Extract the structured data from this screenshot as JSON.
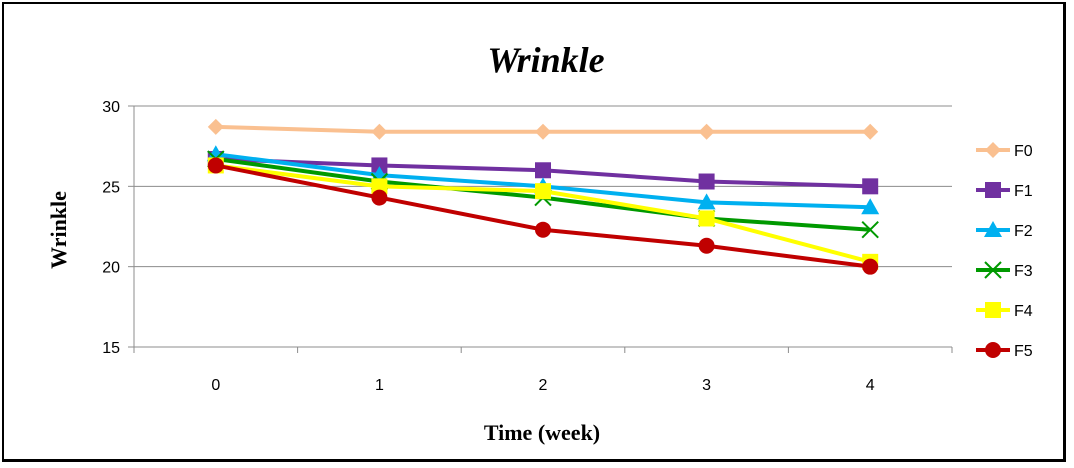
{
  "chart_data": {
    "type": "line",
    "title": "Wrinkle",
    "xlabel": "Time (week)",
    "ylabel": "Wrinkle",
    "categories": [
      "0",
      "1",
      "2",
      "3",
      "4"
    ],
    "ylim": [
      15,
      30
    ],
    "yticks": [
      15,
      20,
      25,
      30
    ],
    "grid": "horizontal",
    "legend_position": "right",
    "series": [
      {
        "name": "F0",
        "color": "#FAC090",
        "marker": "diamond",
        "values": [
          28.7,
          28.4,
          28.4,
          28.4,
          28.4
        ]
      },
      {
        "name": "F1",
        "color": "#7030A0",
        "marker": "square",
        "values": [
          26.7,
          26.3,
          26.0,
          25.3,
          25.0
        ]
      },
      {
        "name": "F2",
        "color": "#00B0F0",
        "marker": "triangle",
        "values": [
          27.0,
          25.7,
          25.0,
          24.0,
          23.7
        ]
      },
      {
        "name": "F3",
        "color": "#009900",
        "marker": "x",
        "values": [
          26.7,
          25.3,
          24.3,
          23.0,
          22.3
        ]
      },
      {
        "name": "F4",
        "color": "#FFFF00",
        "marker": "square",
        "values": [
          26.3,
          25.0,
          24.7,
          23.0,
          20.3
        ]
      },
      {
        "name": "F5",
        "color": "#C00000",
        "marker": "circle",
        "values": [
          26.3,
          24.3,
          22.3,
          21.3,
          20.0
        ]
      }
    ]
  }
}
